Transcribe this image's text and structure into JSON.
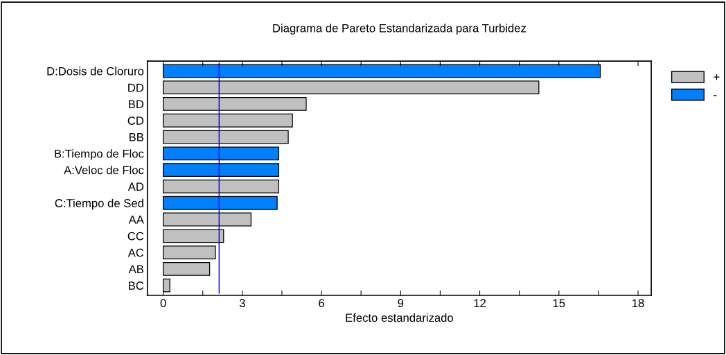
{
  "chart_data": {
    "type": "bar",
    "orientation": "horizontal",
    "title": "Diagrama de Pareto Estandarizada para Turbidez",
    "xlabel": "Efecto estandarizado",
    "categories": [
      "D:Dosis de Cloruro",
      "DD",
      "BD",
      "CD",
      "BB",
      "B:Tiempo de Floc",
      "A:Veloc de Floc",
      "AD",
      "C:Tiempo de Sed",
      "AA",
      "CC",
      "AC",
      "AB",
      "BC"
    ],
    "series": [
      {
        "name": "+",
        "color": "#c0c0c0",
        "values": [
          null,
          14.24,
          5.42,
          4.9,
          4.74,
          null,
          null,
          4.38,
          null,
          3.33,
          2.29,
          1.98,
          1.76,
          0.25
        ]
      },
      {
        "name": "-",
        "color": "#0080ff",
        "values": [
          16.57,
          null,
          null,
          null,
          null,
          4.38,
          4.38,
          null,
          4.32,
          null,
          null,
          null,
          null,
          null
        ]
      }
    ],
    "xlim": [
      -0.6,
      18.5
    ],
    "xticks": [
      0,
      {
        "value": 1.5,
        "label": null
      },
      3,
      {
        "value": 4.5,
        "label": null
      },
      6,
      {
        "value": 7.5,
        "label": null
      },
      9,
      {
        "value": 10.5,
        "label": null
      },
      12,
      {
        "value": 13.5,
        "label": null
      },
      15,
      {
        "value": 16.5,
        "label": null
      },
      18
    ],
    "ref_lines": [
      {
        "axis": "x",
        "value": 2.12,
        "color": "#0000ff"
      }
    ],
    "legend": "right",
    "grid": false
  }
}
